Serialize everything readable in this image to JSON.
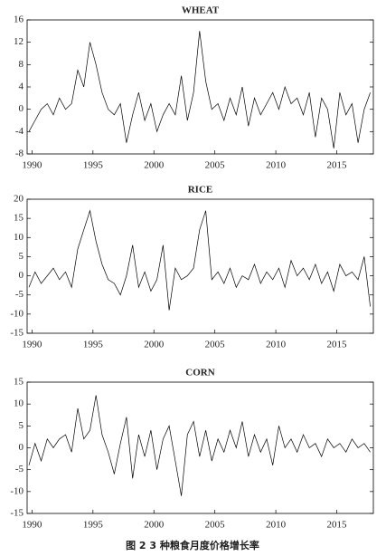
{
  "chart_data": [
    {
      "type": "line",
      "title": "WHEAT",
      "color": "#000000",
      "x": [
        1989.75,
        1990.25,
        1990.75,
        1991.25,
        1991.75,
        1992.25,
        1992.75,
        1993.25,
        1993.75,
        1994.25,
        1994.75,
        1995.25,
        1995.75,
        1996.25,
        1996.75,
        1997.25,
        1997.75,
        1998.25,
        1998.75,
        1999.25,
        1999.75,
        2000.25,
        2000.75,
        2001.25,
        2001.75,
        2002.25,
        2002.75,
        2003.25,
        2003.75,
        2004.25,
        2004.75,
        2005.25,
        2005.75,
        2006.25,
        2006.75,
        2007.25,
        2007.75,
        2008.25,
        2008.75,
        2009.25,
        2009.75,
        2010.25,
        2010.75,
        2011.25,
        2011.75,
        2012.25,
        2012.75,
        2013.25,
        2013.75,
        2014.25,
        2014.75,
        2015.25,
        2015.75,
        2016.25,
        2016.75,
        2017.25,
        2017.75
      ],
      "values": [
        -4,
        -2,
        0,
        1,
        -1,
        2,
        0,
        1,
        7,
        4,
        12,
        8,
        3,
        0,
        -1,
        1,
        -6,
        -1,
        3,
        -2,
        1,
        -4,
        -1,
        1,
        -1,
        6,
        -2,
        3,
        14,
        5,
        0,
        1,
        -2,
        2,
        -1,
        4,
        -3,
        2,
        -1,
        1,
        3,
        0,
        4,
        1,
        2,
        -1,
        3,
        -5,
        2,
        0,
        -7,
        3,
        -1,
        1,
        -6,
        0,
        3
      ],
      "xlim": [
        1989.6,
        2018
      ],
      "ylim": [
        -8,
        16
      ],
      "xticks": [
        1990,
        1995,
        2000,
        2005,
        2010,
        2015
      ],
      "yticks": [
        -8,
        -4,
        0,
        4,
        8,
        12,
        16
      ]
    },
    {
      "type": "line",
      "title": "RICE",
      "color": "#000000",
      "x": [
        1989.75,
        1990.25,
        1990.75,
        1991.25,
        1991.75,
        1992.25,
        1992.75,
        1993.25,
        1993.75,
        1994.25,
        1994.75,
        1995.25,
        1995.75,
        1996.25,
        1996.75,
        1997.25,
        1997.75,
        1998.25,
        1998.75,
        1999.25,
        1999.75,
        2000.25,
        2000.75,
        2001.25,
        2001.75,
        2002.25,
        2002.75,
        2003.25,
        2003.75,
        2004.25,
        2004.75,
        2005.25,
        2005.75,
        2006.25,
        2006.75,
        2007.25,
        2007.75,
        2008.25,
        2008.75,
        2009.25,
        2009.75,
        2010.25,
        2010.75,
        2011.25,
        2011.75,
        2012.25,
        2012.75,
        2013.25,
        2013.75,
        2014.25,
        2014.75,
        2015.25,
        2015.75,
        2016.25,
        2016.75,
        2017.25,
        2017.75
      ],
      "values": [
        -3,
        1,
        -2,
        0,
        2,
        -1,
        1,
        -3,
        7,
        12,
        17,
        9,
        3,
        -1,
        -2,
        -5,
        0,
        8,
        -3,
        1,
        -4,
        -1,
        8,
        -9,
        2,
        -1,
        0,
        2,
        12,
        17,
        -1,
        1,
        -2,
        2,
        -3,
        0,
        -1,
        3,
        -2,
        1,
        -1,
        2,
        -3,
        4,
        0,
        2,
        -1,
        3,
        -2,
        1,
        -4,
        3,
        0,
        1,
        -1,
        5,
        -8
      ],
      "xlim": [
        1989.6,
        2018
      ],
      "ylim": [
        -15,
        20
      ],
      "xticks": [
        1990,
        1995,
        2000,
        2005,
        2010,
        2015
      ],
      "yticks": [
        -15,
        -10,
        -5,
        0,
        5,
        10,
        15,
        20
      ]
    },
    {
      "type": "line",
      "title": "CORN",
      "color": "#000000",
      "x": [
        1989.75,
        1990.25,
        1990.75,
        1991.25,
        1991.75,
        1992.25,
        1992.75,
        1993.25,
        1993.75,
        1994.25,
        1994.75,
        1995.25,
        1995.75,
        1996.25,
        1996.75,
        1997.25,
        1997.75,
        1998.25,
        1998.75,
        1999.25,
        1999.75,
        2000.25,
        2000.75,
        2001.25,
        2001.75,
        2002.25,
        2002.75,
        2003.25,
        2003.75,
        2004.25,
        2004.75,
        2005.25,
        2005.75,
        2006.25,
        2006.75,
        2007.25,
        2007.75,
        2008.25,
        2008.75,
        2009.25,
        2009.75,
        2010.25,
        2010.75,
        2011.25,
        2011.75,
        2012.25,
        2012.75,
        2013.25,
        2013.75,
        2014.25,
        2014.75,
        2015.25,
        2015.75,
        2016.25,
        2016.75,
        2017.25,
        2017.75
      ],
      "values": [
        -4,
        1,
        -3,
        2,
        0,
        2,
        3,
        -1,
        9,
        2,
        4,
        12,
        3,
        -1,
        -6,
        1,
        7,
        -7,
        3,
        -2,
        4,
        -5,
        2,
        5,
        -3,
        -11,
        3,
        6,
        -2,
        4,
        -3,
        2,
        -1,
        4,
        0,
        6,
        -2,
        3,
        -1,
        2,
        -4,
        5,
        0,
        2,
        -1,
        3,
        0,
        1,
        -2,
        2,
        0,
        1,
        -1,
        2,
        0,
        1,
        -1
      ],
      "xlim": [
        1989.6,
        2018
      ],
      "ylim": [
        -15,
        15
      ],
      "xticks": [
        1990,
        1995,
        2000,
        2005,
        2010,
        2015
      ],
      "yticks": [
        -15,
        -10,
        -5,
        0,
        5,
        10,
        15
      ]
    }
  ],
  "caption": "图 2   3 种粮食月度价格增长率"
}
